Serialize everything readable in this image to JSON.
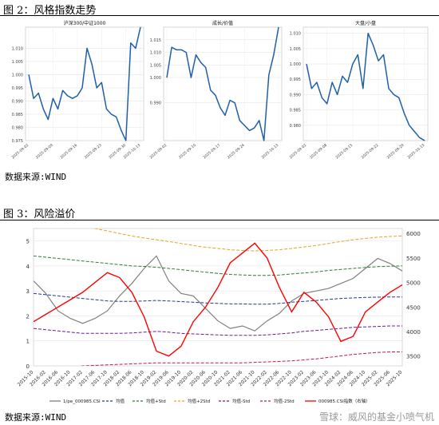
{
  "figure2": {
    "title": "图 2：风格指数走势",
    "source": "数据来源:WIND"
  },
  "figure3": {
    "title": "图 3：风险溢价",
    "source": "数据来源:WIND"
  },
  "watermark": "雪球：威风的基金小喷气机",
  "chart_data": [
    {
      "type": "line",
      "title": "沪深300/中证1000",
      "x": [
        "2025-09-02",
        "2025-09-03",
        "2025-09-04",
        "2025-09-05",
        "2025-09-08",
        "2025-09-09",
        "2025-09-10",
        "2025-09-11",
        "2025-09-12",
        "2025-09-15",
        "2025-09-16",
        "2025-09-17",
        "2025-09-18",
        "2025-09-19",
        "2025-09-22",
        "2025-09-23",
        "2025-09-24",
        "2025-09-25",
        "2025-09-26",
        "2025-09-29",
        "2025-09-30",
        "2025-10-09",
        "2025-10-10",
        "2025-10-13"
      ],
      "values": [
        1.0,
        0.991,
        0.993,
        0.987,
        0.983,
        0.991,
        0.987,
        0.994,
        0.992,
        0.991,
        0.992,
        0.995,
        1.01,
        1.004,
        0.995,
        0.997,
        0.987,
        0.985,
        0.984,
        0.979,
        0.975,
        1.012,
        1.01,
        1.018
      ],
      "ylim": [
        0.975,
        1.018
      ],
      "yticks": [
        "0.975",
        "0.980",
        "0.985",
        "0.990",
        "0.995",
        "1.000",
        "1.005",
        "1.010"
      ],
      "xticks": [
        "2025-09-02",
        "2025-09-09",
        "2025-09-16",
        "2025-09-23",
        "2025-09-30",
        "2025-10-13"
      ]
    },
    {
      "type": "line",
      "title": "成长/价值",
      "x": [
        "2025-09-02",
        "2025-09-03",
        "2025-09-04",
        "2025-09-05",
        "2025-09-08",
        "2025-09-09",
        "2025-09-10",
        "2025-09-11",
        "2025-09-12",
        "2025-09-15",
        "2025-09-16",
        "2025-09-17",
        "2025-09-18",
        "2025-09-19",
        "2025-09-22",
        "2025-09-23",
        "2025-09-24",
        "2025-09-25",
        "2025-09-26",
        "2025-09-29",
        "2025-09-30",
        "2025-10-09",
        "2025-10-10",
        "2025-10-13"
      ],
      "values": [
        1.0,
        1.012,
        1.011,
        1.011,
        1.01,
        1.0,
        1.009,
        1.006,
        1.004,
        0.995,
        0.993,
        0.988,
        0.985,
        0.991,
        0.99,
        0.983,
        0.981,
        0.979,
        0.98,
        0.983,
        0.975,
        1.001,
        1.009,
        1.02
      ],
      "ylim": [
        0.975,
        1.02
      ],
      "yticks": [
        "0.990",
        "1.000",
        "1.005",
        "1.010",
        "1.015"
      ],
      "xticks": [
        "2025-09-02",
        "2025-09-10",
        "2025-09-17",
        "2025-09-24",
        "2025-10-13"
      ]
    },
    {
      "type": "line",
      "title": "大盘/小盘",
      "x": [
        "2025-09-02",
        "2025-09-03",
        "2025-09-04",
        "2025-09-05",
        "2025-09-08",
        "2025-09-09",
        "2025-09-10",
        "2025-09-11",
        "2025-09-12",
        "2025-09-15",
        "2025-09-16",
        "2025-09-17",
        "2025-09-18",
        "2025-09-19",
        "2025-09-22",
        "2025-09-23",
        "2025-09-24",
        "2025-09-25",
        "2025-09-26",
        "2025-09-29",
        "2025-09-30",
        "2025-10-09",
        "2025-10-10",
        "2025-10-13"
      ],
      "values": [
        1.0,
        0.992,
        0.994,
        0.989,
        0.987,
        0.994,
        0.99,
        0.996,
        0.994,
        1.0,
        1.003,
        0.992,
        1.01,
        1.006,
        1.001,
        1.003,
        0.992,
        0.99,
        0.989,
        0.984,
        0.98,
        0.978,
        0.976,
        0.975
      ],
      "ylim": [
        0.975,
        1.012
      ],
      "yticks": [
        "0.980",
        "0.985",
        "0.990",
        "0.995",
        "1.000",
        "1.005",
        "1.010"
      ],
      "xticks": [
        "2025-09-02",
        "2025-09-08",
        "2025-09-15",
        "2025-09-22",
        "2025-09-29",
        "2025-10-13"
      ]
    },
    {
      "type": "line",
      "title": "",
      "x_dates": [
        "2015-10",
        "2016-02",
        "2016-06",
        "2016-10",
        "2017-02",
        "2017-06",
        "2017-10",
        "2018-02",
        "2018-06",
        "2018-10",
        "2019-02",
        "2019-06",
        "2019-10",
        "2020-02",
        "2020-06",
        "2020-10",
        "2021-02",
        "2021-06",
        "2021-10",
        "2022-02",
        "2022-06",
        "2022-10",
        "2023-02",
        "2023-06",
        "2023-10",
        "2024-02",
        "2024-06",
        "2024-10",
        "2025-02",
        "2025-06",
        "2025-10"
      ],
      "x_labels": [
        "2015-10",
        "2016-02",
        "2016-06",
        "2016-10",
        "2017-02",
        "2017-06",
        "2017-10",
        "2018-02",
        "2018-06",
        "2018-10",
        "2019-02",
        "2019-06",
        "2019-10",
        "2020-02",
        "2020-06",
        "2020-10",
        "2021-02",
        "2021-06",
        "2021-10",
        "2022-02",
        "2022-06",
        "2022-10",
        "2023-02",
        "2023-06",
        "2023-10",
        "2024-02",
        "2024-06",
        "2024-10",
        "2025-02",
        "2025-06",
        "2025-10"
      ],
      "y_left_lim": [
        0,
        5.5
      ],
      "y_left_ticks": [
        "0",
        "1",
        "2",
        "3",
        "4",
        "5"
      ],
      "y_right_lim": [
        3300,
        6100
      ],
      "y_right_ticks": [
        "3500",
        "4000",
        "4500",
        "5000",
        "5500",
        "6000"
      ],
      "series": [
        {
          "name": "1/pe_000985.CSI",
          "axis": "left",
          "color": "#808080",
          "values": [
            3.4,
            2.9,
            2.2,
            1.9,
            1.7,
            1.9,
            2.2,
            2.8,
            3.3,
            3.9,
            4.4,
            3.4,
            2.9,
            2.8,
            2.3,
            1.8,
            1.5,
            1.6,
            1.4,
            1.8,
            2.1,
            2.6,
            2.9,
            3.0,
            3.1,
            3.3,
            3.5,
            3.9,
            4.3,
            4.1,
            3.8
          ]
        },
        {
          "name": "均值",
          "axis": "left",
          "color": "#1f3a93",
          "values": [
            2.9,
            2.85,
            2.8,
            2.75,
            2.7,
            2.65,
            2.6,
            2.58,
            2.58,
            2.6,
            2.62,
            2.6,
            2.57,
            2.55,
            2.52,
            2.5,
            2.48,
            2.48,
            2.47,
            2.47,
            2.5,
            2.55,
            2.58,
            2.62,
            2.66,
            2.7,
            2.72,
            2.74,
            2.75,
            2.76,
            2.76
          ]
        },
        {
          "name": "均值+Std",
          "axis": "left",
          "color": "#2e7d32",
          "values": [
            4.4,
            4.35,
            4.3,
            4.25,
            4.2,
            4.15,
            4.1,
            4.05,
            4.0,
            3.98,
            3.95,
            3.9,
            3.85,
            3.8,
            3.75,
            3.7,
            3.66,
            3.64,
            3.62,
            3.62,
            3.64,
            3.68,
            3.72,
            3.76,
            3.82,
            3.86,
            3.9,
            3.94,
            3.97,
            3.99,
            4.0
          ]
        },
        {
          "name": "均值+2Std",
          "axis": "left",
          "color": "#f0a020",
          "values": [
            6.0,
            5.9,
            5.8,
            5.7,
            5.6,
            5.5,
            5.4,
            5.3,
            5.2,
            5.12,
            5.05,
            4.98,
            4.9,
            4.82,
            4.75,
            4.7,
            4.65,
            4.62,
            4.6,
            4.62,
            4.65,
            4.7,
            4.76,
            4.82,
            4.9,
            4.98,
            5.05,
            5.1,
            5.15,
            5.18,
            5.2
          ]
        },
        {
          "name": "均值-Std",
          "axis": "left",
          "color": "#6a1b9a",
          "values": [
            1.5,
            1.45,
            1.4,
            1.35,
            1.3,
            1.3,
            1.3,
            1.3,
            1.32,
            1.35,
            1.38,
            1.35,
            1.3,
            1.28,
            1.26,
            1.24,
            1.22,
            1.22,
            1.22,
            1.24,
            1.28,
            1.32,
            1.38,
            1.42,
            1.46,
            1.5,
            1.54,
            1.56,
            1.58,
            1.6,
            1.6
          ]
        },
        {
          "name": "均值-2Std",
          "axis": "left",
          "color": "#c2185b",
          "values": [
            -0.2,
            -0.15,
            -0.1,
            -0.05,
            0.0,
            0.02,
            0.04,
            0.06,
            0.08,
            0.1,
            0.12,
            0.12,
            0.12,
            0.12,
            0.12,
            0.12,
            0.12,
            0.12,
            0.14,
            0.16,
            0.18,
            0.2,
            0.24,
            0.28,
            0.34,
            0.4,
            0.46,
            0.5,
            0.54,
            0.56,
            0.56
          ]
        },
        {
          "name": "000985.CSI指数（右轴）",
          "axis": "right",
          "color": "#ff0000",
          "values": [
            4200,
            4350,
            4500,
            4650,
            4800,
            5000,
            5200,
            5100,
            4800,
            4300,
            3600,
            3500,
            3700,
            4200,
            4500,
            4900,
            5400,
            5600,
            5800,
            5500,
            4900,
            4400,
            4800,
            4600,
            4300,
            3800,
            3900,
            4400,
            4600,
            4800,
            4950
          ]
        }
      ]
    }
  ]
}
